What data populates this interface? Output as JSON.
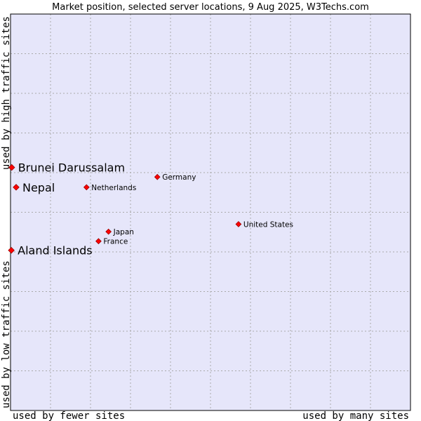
{
  "chart_data": {
    "type": "scatter",
    "title": "Market position, selected server locations, 9 Aug 2025, W3Techs.com",
    "xlabel_left": "used by fewer sites",
    "xlabel_right": "used by many sites",
    "ylabel_bottom": "used by low traffic sites",
    "ylabel_top": "used by high traffic sites",
    "xlim": [
      0,
      100
    ],
    "ylim": [
      0,
      100
    ],
    "grid": true,
    "colors": {
      "plot_background": "#e6e6fa",
      "grid": "#aaaaaa",
      "marker": "#ff0000",
      "marker_edge": "#990000"
    },
    "points": [
      {
        "name": "Brunei Darussalam",
        "x": 0.3,
        "y": 61.3,
        "highlight": true
      },
      {
        "name": "Nepal",
        "x": 1.4,
        "y": 56.3,
        "highlight": true
      },
      {
        "name": "Aland Islands",
        "x": 0.2,
        "y": 40.4,
        "highlight": true
      },
      {
        "name": "Germany",
        "x": 36.7,
        "y": 58.9,
        "highlight": false
      },
      {
        "name": "Netherlands",
        "x": 19.0,
        "y": 56.3,
        "highlight": false
      },
      {
        "name": "United States",
        "x": 57.0,
        "y": 47.0,
        "highlight": false
      },
      {
        "name": "Japan",
        "x": 24.5,
        "y": 45.1,
        "highlight": false
      },
      {
        "name": "France",
        "x": 22.0,
        "y": 42.7,
        "highlight": false
      }
    ]
  }
}
